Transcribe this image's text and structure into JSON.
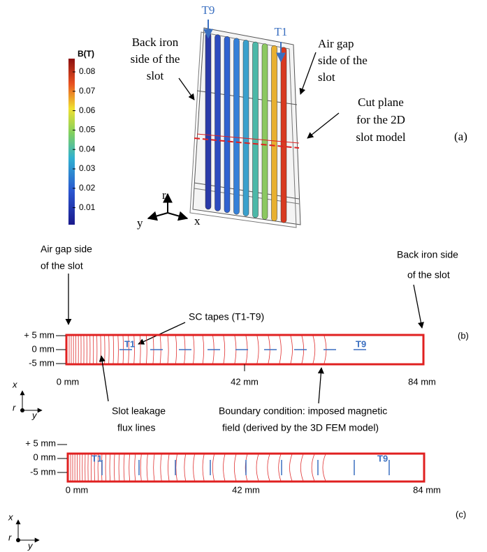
{
  "panel_a": {
    "colorbar_title": "B(T)",
    "colorbar_ticks": [
      "0.08",
      "0.07",
      "0.06",
      "0.05",
      "0.04",
      "0.03",
      "0.02",
      "0.01"
    ],
    "tape_labels": [
      "T9",
      "T1"
    ],
    "back_iron_label": [
      "Back iron",
      "side of the",
      "slot"
    ],
    "air_gap_label": [
      "Air gap",
      "side of the",
      "slot"
    ],
    "cut_plane_label": [
      "Cut plane",
      "for the 2D",
      "slot model"
    ],
    "axes": [
      "r",
      "y",
      "x"
    ],
    "tag": "(a)"
  },
  "panel_b": {
    "air_gap_label": [
      "Air gap side",
      "of the slot"
    ],
    "back_iron_label": [
      "Back iron side",
      "of the slot"
    ],
    "tapes_label": "SC tapes (T1-T9)",
    "y_ticks": [
      "+ 5 mm",
      "0 mm",
      "-5 mm"
    ],
    "x_ticks": [
      "0 mm",
      "42 mm",
      "84 mm"
    ],
    "tape_labels": [
      "T1",
      "T9"
    ],
    "flux_label": [
      "Slot leakage",
      "flux lines"
    ],
    "boundary_label": [
      "Boundary condition: imposed magnetic",
      "field (derived by the 3D FEM model)"
    ],
    "axes": [
      "x",
      "r",
      "y"
    ],
    "tag": "(b)"
  },
  "panel_c": {
    "y_ticks": [
      "+ 5 mm",
      "0 mm",
      "-5 mm"
    ],
    "x_ticks": [
      "0 mm",
      "42 mm",
      "84 mm"
    ],
    "tape_labels": [
      "T1",
      "T9"
    ],
    "axes": [
      "x",
      "r",
      "y"
    ],
    "tag": "(c)"
  }
}
